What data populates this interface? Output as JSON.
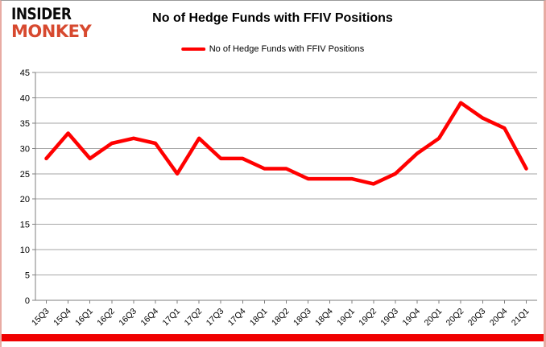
{
  "logo": {
    "line1": "INSIDER",
    "line2": "MONKEY"
  },
  "header": {
    "title": "No of Hedge Funds with FFIV Positions"
  },
  "legend": {
    "label": "No of Hedge Funds with FFIV Positions"
  },
  "colors": {
    "line": "#FF0000",
    "grid": "#A6A6A6",
    "axis": "#7F7F7F",
    "tick_text": "#000000",
    "logo_accent": "#D7492F",
    "logo_black": "#0A0A0A",
    "bottom_bar": "#F00000",
    "frame_border": "#E8ABA3"
  },
  "chart_data": {
    "type": "line",
    "title": "No of Hedge Funds with FFIV Positions",
    "categories": [
      "15Q3",
      "15Q4",
      "16Q1",
      "16Q2",
      "16Q3",
      "16Q4",
      "17Q1",
      "17Q2",
      "17Q3",
      "17Q4",
      "18Q1",
      "18Q2",
      "18Q3",
      "18Q4",
      "19Q1",
      "19Q2",
      "19Q3",
      "19Q4",
      "20Q1",
      "20Q2",
      "20Q3",
      "20Q4",
      "21Q1"
    ],
    "series": [
      {
        "name": "No of Hedge Funds with FFIV Positions",
        "color": "#FF0000",
        "values": [
          28,
          33,
          28,
          31,
          32,
          31,
          25,
          32,
          28,
          28,
          26,
          26,
          24,
          24,
          24,
          23,
          25,
          29,
          32,
          39,
          36,
          34,
          26
        ]
      }
    ],
    "xlabel": "",
    "ylabel": "",
    "ylim": [
      0,
      45
    ],
    "ytick_step": 5,
    "grid": true,
    "legend_position": "top",
    "x_label_rotation": -45
  }
}
